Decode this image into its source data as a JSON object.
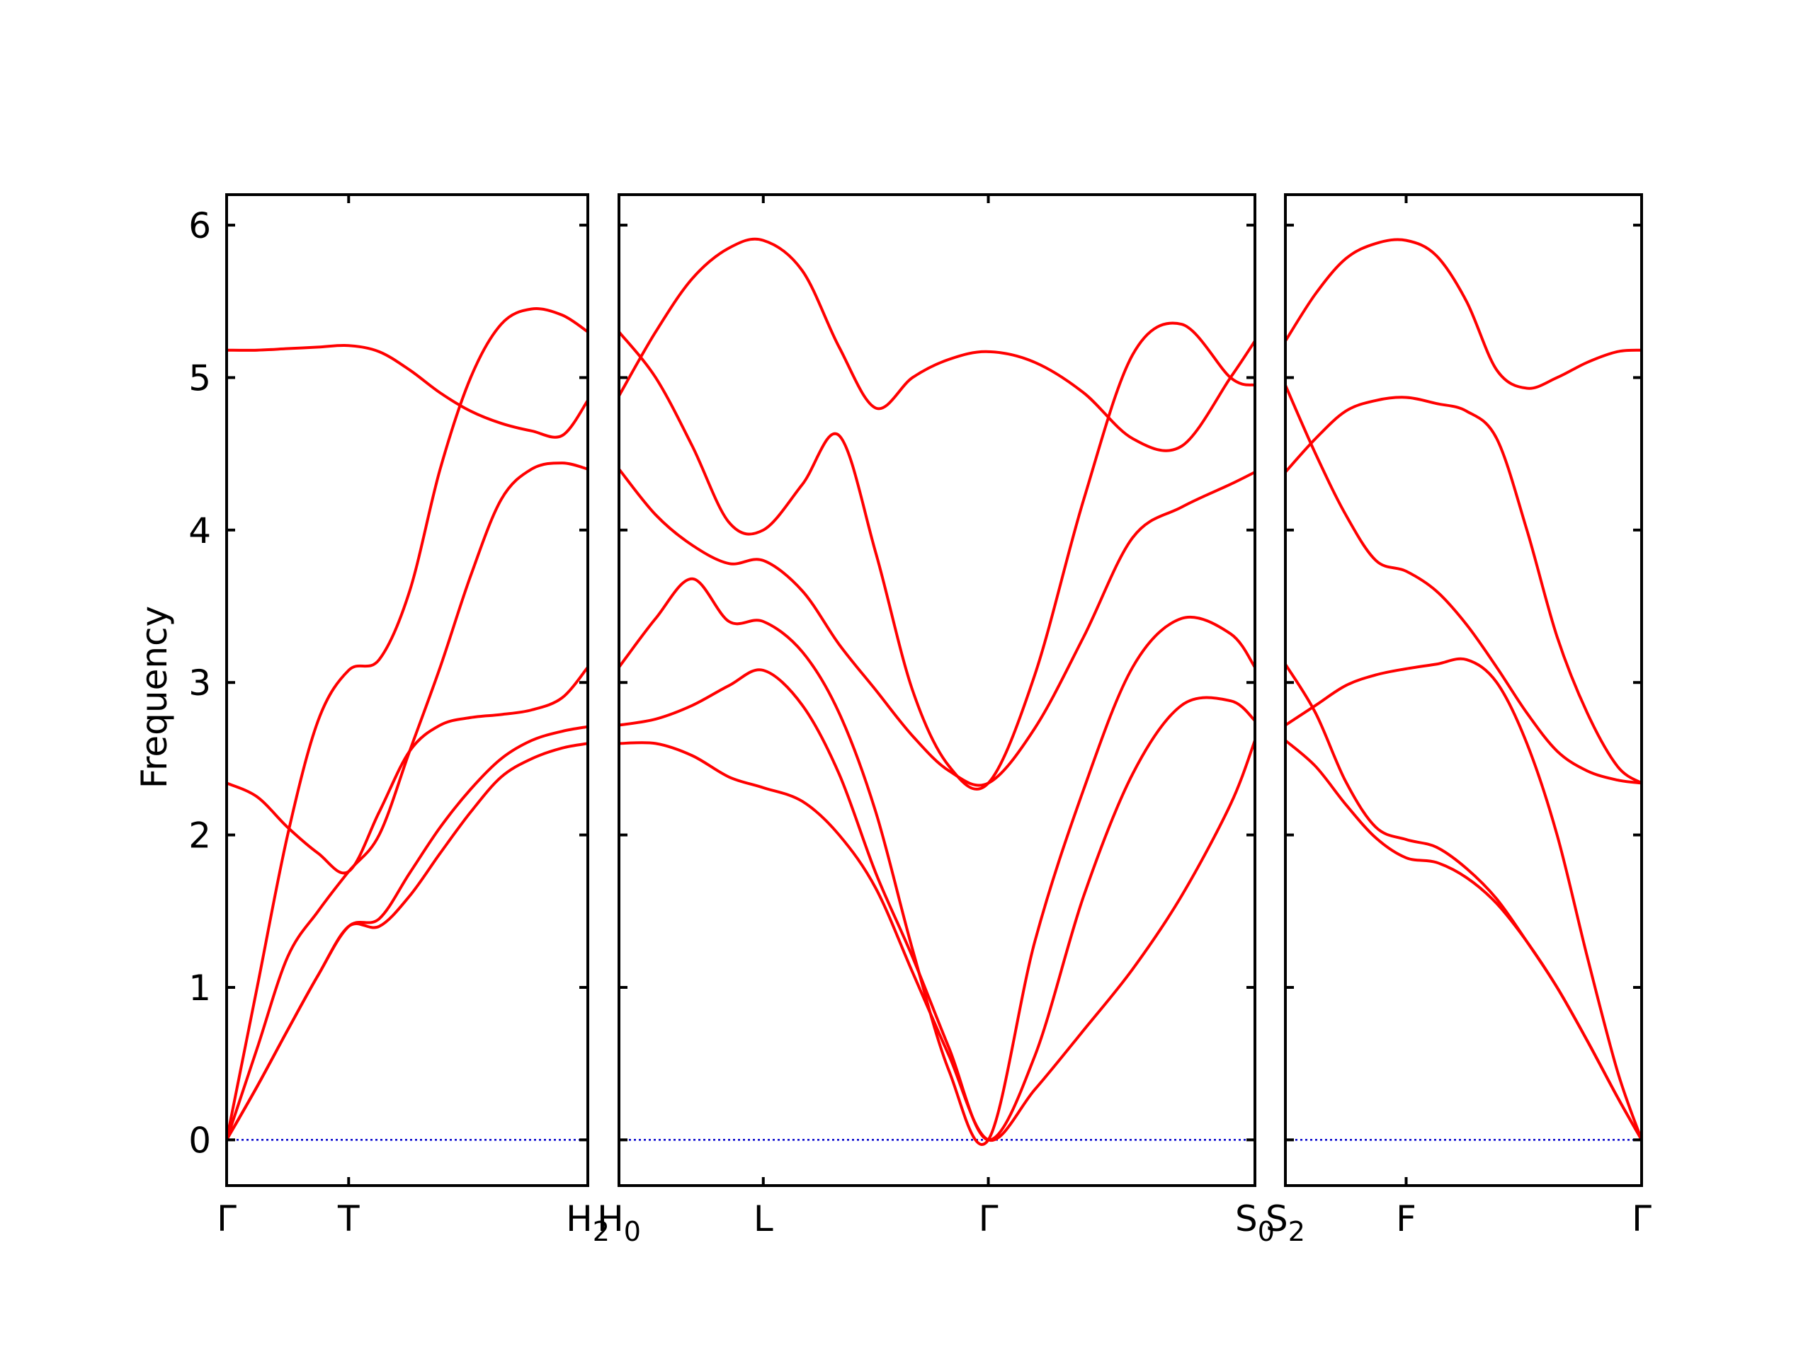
{
  "chart_data": {
    "type": "line",
    "ylabel": "Frequency",
    "ylim": [
      -0.3,
      6.2
    ],
    "yticks": [
      "0",
      "1",
      "2",
      "3",
      "4",
      "5",
      "6"
    ],
    "colors": {
      "bands": "#ff0000",
      "zero_line": "#0000cc",
      "axes": "#000000"
    },
    "panels": [
      {
        "qpoints": [
          {
            "x": 0.0,
            "label": "Γ"
          },
          {
            "x": 1.0,
            "label": "T"
          },
          {
            "x": 2.96,
            "label": "H",
            "sub": "2"
          }
        ],
        "xlim": [
          0.0,
          2.96
        ],
        "series": [
          {
            "x": [
              0,
              0.25,
              0.5,
              0.75,
              1,
              1.25,
              1.5,
              1.75,
              2,
              2.25,
              2.5,
              2.75,
              2.96
            ],
            "values": [
              0,
              0.35,
              0.72,
              1.08,
              1.4,
              1.4,
              1.6,
              1.88,
              2.15,
              2.38,
              2.5,
              2.57,
              2.6
            ]
          },
          {
            "x": [
              0,
              0.25,
              0.5,
              0.75,
              1,
              1.25,
              1.5,
              1.75,
              2,
              2.25,
              2.5,
              2.75,
              2.96
            ],
            "values": [
              0,
              0.35,
              0.72,
              1.08,
              1.4,
              1.45,
              1.75,
              2.05,
              2.3,
              2.5,
              2.62,
              2.68,
              2.71
            ]
          },
          {
            "x": [
              0,
              0.25,
              0.5,
              0.75,
              1,
              1.25,
              1.5,
              1.75,
              2,
              2.25,
              2.5,
              2.75,
              2.96
            ],
            "values": [
              2.34,
              2.25,
              2.05,
              1.88,
              1.76,
              2.15,
              2.55,
              2.72,
              2.77,
              2.79,
              2.82,
              2.9,
              3.1
            ]
          },
          {
            "x": [
              0,
              0.25,
              0.5,
              0.75,
              1,
              1.25,
              1.5,
              1.75,
              2,
              2.25,
              2.5,
              2.75,
              2.96
            ],
            "values": [
              0,
              1.0,
              2.0,
              2.75,
              3.08,
              3.15,
              3.6,
              4.4,
              5.0,
              5.35,
              5.45,
              5.41,
              5.3
            ]
          },
          {
            "x": [
              0,
              0.25,
              0.5,
              0.75,
              1,
              1.25,
              1.5,
              1.75,
              2,
              2.25,
              2.5,
              2.75,
              2.96
            ],
            "values": [
              5.18,
              5.18,
              5.19,
              5.2,
              5.21,
              5.17,
              5.05,
              4.9,
              4.78,
              4.7,
              4.65,
              4.62,
              4.85
            ]
          },
          {
            "x": [
              0,
              0.25,
              0.5,
              0.75,
              1,
              1.25,
              1.5,
              1.75,
              2,
              2.25,
              2.5,
              2.75,
              2.96
            ],
            "values": [
              0,
              0.6,
              1.2,
              1.5,
              1.76,
              2.0,
              2.55,
              3.1,
              3.7,
              4.2,
              4.4,
              4.44,
              4.4
            ]
          }
        ]
      },
      {
        "qpoints": [
          {
            "x": 0.0,
            "label": "H",
            "sub": "0"
          },
          {
            "x": 1.18,
            "label": "L"
          },
          {
            "x": 3.02,
            "label": "Γ"
          },
          {
            "x": 5.2,
            "label": "S",
            "sub": "0"
          }
        ],
        "xlim": [
          0.0,
          5.2
        ],
        "series": [
          {
            "x": [
              0,
              0.3,
              0.6,
              0.9,
              1.18,
              1.5,
              1.8,
              2.1,
              2.4,
              2.7,
              3.02,
              3.4,
              3.8,
              4.2,
              4.6,
              5.0,
              5.2
            ],
            "values": [
              2.6,
              2.6,
              2.52,
              2.38,
              2.31,
              2.22,
              2.0,
              1.65,
              1.1,
              0.55,
              0,
              0.33,
              0.72,
              1.12,
              1.6,
              2.2,
              2.62
            ]
          },
          {
            "x": [
              0,
              0.3,
              0.6,
              0.9,
              1.18,
              1.5,
              1.8,
              2.1,
              2.4,
              2.7,
              3.02,
              3.4,
              3.8,
              4.2,
              4.6,
              5.0,
              5.2
            ],
            "values": [
              2.72,
              2.76,
              2.85,
              2.98,
              3.08,
              2.85,
              2.4,
              1.75,
              1.2,
              0.6,
              0,
              0.55,
              1.6,
              2.4,
              2.85,
              2.88,
              2.75
            ]
          },
          {
            "x": [
              0,
              0.3,
              0.6,
              0.9,
              1.18,
              1.5,
              1.8,
              2.1,
              2.4,
              2.7,
              3.02,
              3.4,
              3.8,
              4.2,
              4.6,
              5.0,
              5.2
            ],
            "values": [
              3.1,
              3.42,
              3.68,
              3.4,
              3.4,
              3.2,
              2.8,
              2.15,
              1.25,
              0.45,
              0,
              1.3,
              2.3,
              3.1,
              3.42,
              3.32,
              3.1
            ]
          },
          {
            "x": [
              0,
              0.3,
              0.6,
              0.9,
              1.18,
              1.5,
              1.8,
              2.1,
              2.4,
              2.7,
              3.02,
              3.4,
              3.8,
              4.2,
              4.6,
              5.0,
              5.2
            ],
            "values": [
              4.4,
              4.1,
              3.9,
              3.78,
              3.8,
              3.6,
              3.25,
              2.95,
              2.65,
              2.42,
              2.34,
              2.7,
              3.3,
              3.95,
              4.15,
              4.3,
              4.38
            ]
          },
          {
            "x": [
              0,
              0.3,
              0.6,
              0.9,
              1.18,
              1.5,
              1.8,
              2.1,
              2.4,
              2.7,
              3.02,
              3.4,
              3.8,
              4.2,
              4.6,
              5.0,
              5.2
            ],
            "values": [
              5.3,
              5.0,
              4.55,
              4.05,
              4.0,
              4.3,
              4.62,
              3.85,
              2.95,
              2.45,
              2.34,
              3.05,
              4.2,
              5.15,
              5.35,
              5.0,
              4.95
            ]
          },
          {
            "x": [
              0,
              0.3,
              0.6,
              0.9,
              1.18,
              1.5,
              1.8,
              2.1,
              2.4,
              2.7,
              3.02,
              3.4,
              3.8,
              4.2,
              4.6,
              5.0,
              5.2
            ],
            "values": [
              4.88,
              5.3,
              5.65,
              5.85,
              5.9,
              5.7,
              5.2,
              4.8,
              5.0,
              5.12,
              5.17,
              5.1,
              4.9,
              4.6,
              4.55,
              5.0,
              5.24
            ]
          }
        ]
      },
      {
        "qpoints": [
          {
            "x": 0.0,
            "label": "S",
            "sub": "2"
          },
          {
            "x": 1.0,
            "label": "F"
          },
          {
            "x": 2.95,
            "label": "Γ"
          }
        ],
        "xlim": [
          0.0,
          2.95
        ],
        "series": [
          {
            "x": [
              0,
              0.25,
              0.5,
              0.75,
              1,
              1.25,
              1.5,
              1.75,
              2,
              2.25,
              2.5,
              2.75,
              2.95
            ],
            "values": [
              2.62,
              2.45,
              2.2,
              1.98,
              1.85,
              1.82,
              1.72,
              1.55,
              1.3,
              1.0,
              0.65,
              0.28,
              0
            ]
          },
          {
            "x": [
              0,
              0.25,
              0.5,
              0.75,
              1,
              1.25,
              1.5,
              1.75,
              2,
              2.25,
              2.5,
              2.75,
              2.95
            ],
            "values": [
              3.12,
              2.8,
              2.35,
              2.05,
              1.97,
              1.92,
              1.78,
              1.58,
              1.3,
              1.0,
              0.65,
              0.28,
              0
            ]
          },
          {
            "x": [
              0,
              0.25,
              0.5,
              0.75,
              1,
              1.25,
              1.5,
              1.75,
              2,
              2.25,
              2.5,
              2.75,
              2.95
            ],
            "values": [
              2.72,
              2.85,
              2.98,
              3.05,
              3.09,
              3.12,
              3.15,
              3.0,
              2.6,
              2.0,
              1.2,
              0.45,
              0
            ]
          },
          {
            "x": [
              0,
              0.25,
              0.5,
              0.75,
              1,
              1.25,
              1.5,
              1.75,
              2,
              2.25,
              2.5,
              2.75,
              2.95
            ],
            "values": [
              4.95,
              4.5,
              4.1,
              3.8,
              3.73,
              3.6,
              3.38,
              3.1,
              2.8,
              2.55,
              2.42,
              2.36,
              2.34
            ]
          },
          {
            "x": [
              0,
              0.25,
              0.5,
              0.75,
              1,
              1.25,
              1.5,
              1.75,
              2,
              2.25,
              2.5,
              2.75,
              2.95
            ],
            "values": [
              4.38,
              4.6,
              4.78,
              4.85,
              4.87,
              4.83,
              4.78,
              4.6,
              4.0,
              3.3,
              2.8,
              2.45,
              2.34
            ]
          },
          {
            "x": [
              0,
              0.25,
              0.5,
              0.75,
              1,
              1.25,
              1.5,
              1.75,
              2,
              2.25,
              2.5,
              2.75,
              2.95
            ],
            "values": [
              5.24,
              5.55,
              5.78,
              5.88,
              5.9,
              5.8,
              5.5,
              5.05,
              4.93,
              5.0,
              5.1,
              5.17,
              5.18
            ]
          }
        ]
      }
    ]
  }
}
